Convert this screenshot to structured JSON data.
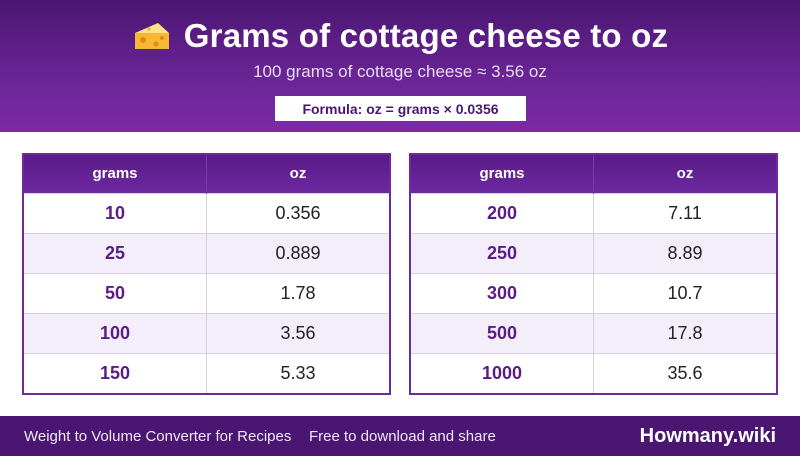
{
  "header": {
    "icon": "cheese-icon",
    "title": "Grams of cottage cheese to oz",
    "subtitle": "100 grams of cottage cheese ≈ 3.56 oz",
    "formula": "Formula: oz = grams × 0.0356"
  },
  "tables": [
    {
      "headers": [
        "grams",
        "oz"
      ],
      "rows": [
        [
          "10",
          "0.356"
        ],
        [
          "25",
          "0.889"
        ],
        [
          "50",
          "1.78"
        ],
        [
          "100",
          "3.56"
        ],
        [
          "150",
          "5.33"
        ]
      ]
    },
    {
      "headers": [
        "grams",
        "oz"
      ],
      "rows": [
        [
          "200",
          "7.11"
        ],
        [
          "250",
          "8.89"
        ],
        [
          "300",
          "10.7"
        ],
        [
          "500",
          "17.8"
        ],
        [
          "1000",
          "35.6"
        ]
      ]
    }
  ],
  "footer": {
    "left": "Weight to Volume Converter for Recipes",
    "middle": "Free to download and share",
    "brand": "Howmany.wiki"
  },
  "colors": {
    "accent": "#4a1672",
    "header_gradient_end": "#7b2aa6",
    "row_alt": "#f4eefa"
  }
}
